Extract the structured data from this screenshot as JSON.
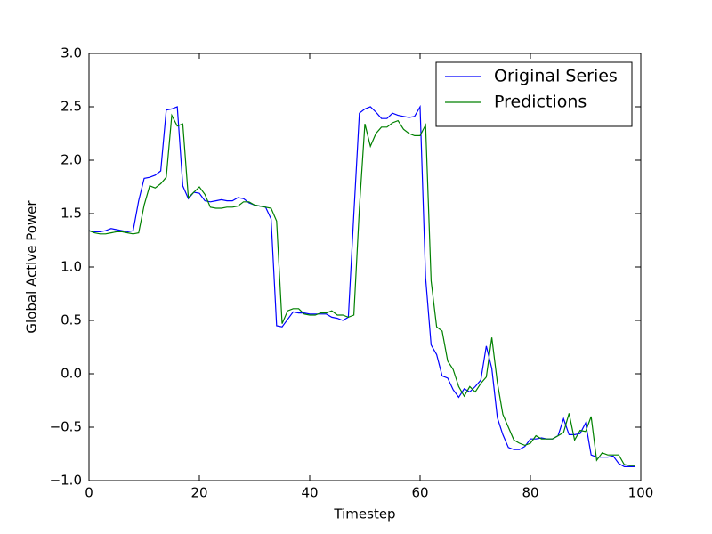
{
  "chart_data": {
    "type": "line",
    "x_label": "Timestep",
    "y_label": "Global Active Power",
    "x": [
      0,
      1,
      2,
      3,
      4,
      5,
      6,
      7,
      8,
      9,
      10,
      11,
      12,
      13,
      14,
      15,
      16,
      17,
      18,
      19,
      20,
      21,
      22,
      23,
      24,
      25,
      26,
      27,
      28,
      29,
      30,
      31,
      32,
      33,
      34,
      35,
      36,
      37,
      38,
      39,
      40,
      41,
      42,
      43,
      44,
      45,
      46,
      47,
      48,
      49,
      50,
      51,
      52,
      53,
      54,
      55,
      56,
      57,
      58,
      59,
      60,
      61,
      62,
      63,
      64,
      65,
      66,
      67,
      68,
      69,
      70,
      71,
      72,
      73,
      74,
      75,
      76,
      77,
      78,
      79,
      80,
      81,
      82,
      83,
      84,
      85,
      86,
      87,
      88,
      89,
      90,
      91,
      92,
      93,
      94,
      95,
      96,
      97,
      98,
      99
    ],
    "series": [
      {
        "name": "Original Series",
        "color": "#0000ff",
        "values": [
          1.34,
          1.33,
          1.33,
          1.34,
          1.36,
          1.35,
          1.34,
          1.33,
          1.34,
          1.62,
          1.83,
          1.84,
          1.86,
          1.9,
          2.47,
          2.48,
          2.5,
          1.76,
          1.64,
          1.7,
          1.69,
          1.62,
          1.61,
          1.62,
          1.63,
          1.62,
          1.62,
          1.65,
          1.64,
          1.6,
          1.58,
          1.57,
          1.56,
          1.45,
          0.45,
          0.44,
          0.51,
          0.58,
          0.57,
          0.57,
          0.56,
          0.56,
          0.56,
          0.56,
          0.53,
          0.52,
          0.5,
          0.53,
          1.5,
          2.44,
          2.48,
          2.5,
          2.45,
          2.39,
          2.39,
          2.44,
          2.42,
          2.41,
          2.4,
          2.41,
          2.5,
          0.9,
          0.27,
          0.18,
          -0.02,
          -0.04,
          -0.15,
          -0.22,
          -0.14,
          -0.17,
          -0.12,
          -0.06,
          0.26,
          0.05,
          -0.41,
          -0.57,
          -0.69,
          -0.71,
          -0.71,
          -0.68,
          -0.61,
          -0.61,
          -0.6,
          -0.61,
          -0.61,
          -0.58,
          -0.42,
          -0.57,
          -0.57,
          -0.56,
          -0.46,
          -0.76,
          -0.78,
          -0.78,
          -0.78,
          -0.77,
          -0.84,
          -0.87,
          -0.87,
          -0.87
        ]
      },
      {
        "name": "Predictions",
        "color": "#008000",
        "values": [
          1.34,
          1.32,
          1.31,
          1.31,
          1.32,
          1.33,
          1.33,
          1.32,
          1.31,
          1.32,
          1.58,
          1.76,
          1.74,
          1.78,
          1.84,
          2.42,
          2.32,
          2.34,
          1.65,
          1.7,
          1.75,
          1.68,
          1.56,
          1.55,
          1.55,
          1.56,
          1.56,
          1.57,
          1.61,
          1.61,
          1.58,
          1.57,
          1.56,
          1.55,
          1.43,
          0.47,
          0.59,
          0.61,
          0.61,
          0.56,
          0.55,
          0.55,
          0.57,
          0.57,
          0.59,
          0.55,
          0.55,
          0.53,
          0.55,
          1.55,
          2.34,
          2.13,
          2.25,
          2.31,
          2.31,
          2.35,
          2.37,
          2.29,
          2.25,
          2.23,
          2.23,
          2.33,
          0.87,
          0.44,
          0.4,
          0.12,
          0.04,
          -0.12,
          -0.21,
          -0.12,
          -0.17,
          -0.09,
          -0.03,
          0.34,
          -0.08,
          -0.38,
          -0.5,
          -0.62,
          -0.65,
          -0.67,
          -0.65,
          -0.58,
          -0.61,
          -0.61,
          -0.61,
          -0.58,
          -0.55,
          -0.37,
          -0.62,
          -0.53,
          -0.54,
          -0.4,
          -0.81,
          -0.74,
          -0.76,
          -0.76,
          -0.76,
          -0.85,
          -0.86,
          -0.86
        ]
      }
    ],
    "xlim": [
      0,
      100
    ],
    "xticks": [
      0,
      20,
      40,
      60,
      80,
      100
    ],
    "ylim": [
      -1,
      3
    ],
    "yticks": [
      {
        "value": -1,
        "label": "−1.0"
      },
      {
        "value": -0.5,
        "label": "−0.5"
      },
      {
        "value": 0,
        "label": "0.0"
      },
      {
        "value": 0.5,
        "label": "0.5"
      },
      {
        "value": 1,
        "label": "1.0"
      },
      {
        "value": 1.5,
        "label": "1.5"
      },
      {
        "value": 2,
        "label": "2.0"
      },
      {
        "value": 2.5,
        "label": "2.5"
      },
      {
        "value": 3,
        "label": "3.0"
      }
    ],
    "grid": false,
    "legend": "upper right"
  }
}
